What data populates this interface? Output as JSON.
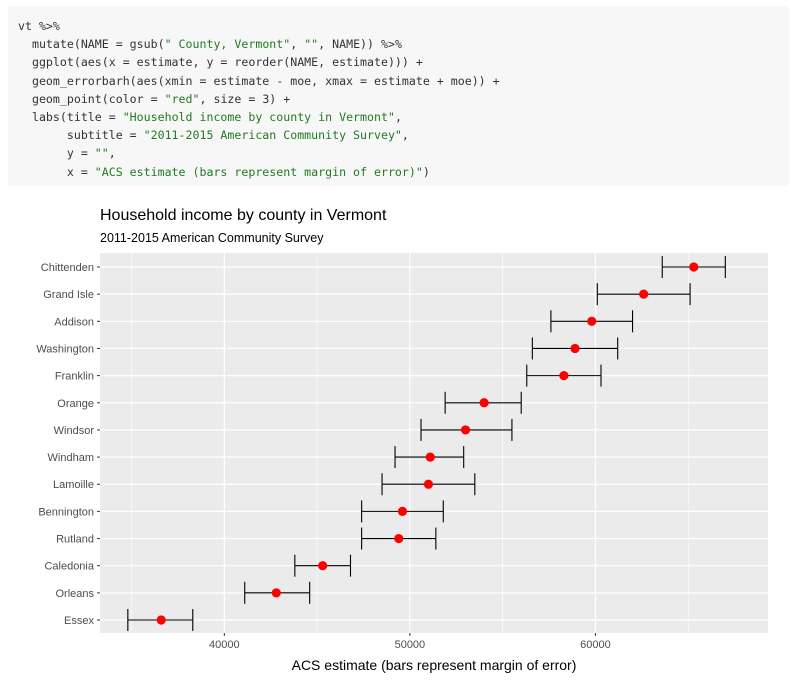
{
  "code": {
    "lines": [
      [
        {
          "t": "vt %>%",
          "s": false
        }
      ],
      [
        {
          "t": "  mutate(NAME = gsub(",
          "s": false
        },
        {
          "t": "\" County, Vermont\"",
          "s": true
        },
        {
          "t": ", ",
          "s": false
        },
        {
          "t": "\"\"",
          "s": true
        },
        {
          "t": ", NAME)) %>%",
          "s": false
        }
      ],
      [
        {
          "t": "  ggplot(aes(x = estimate, y = reorder(NAME, estimate))) +",
          "s": false
        }
      ],
      [
        {
          "t": "  geom_errorbarh(aes(xmin = estimate - moe, xmax = estimate + moe)) +",
          "s": false
        }
      ],
      [
        {
          "t": "  geom_point(color = ",
          "s": false
        },
        {
          "t": "\"red\"",
          "s": true
        },
        {
          "t": ", size = 3) +",
          "s": false
        }
      ],
      [
        {
          "t": "  labs(title = ",
          "s": false
        },
        {
          "t": "\"Household income by county in Vermont\"",
          "s": true
        },
        {
          "t": ",",
          "s": false
        }
      ],
      [
        {
          "t": "       subtitle = ",
          "s": false
        },
        {
          "t": "\"2011-2015 American Community Survey\"",
          "s": true
        },
        {
          "t": ",",
          "s": false
        }
      ],
      [
        {
          "t": "       y = ",
          "s": false
        },
        {
          "t": "\"\"",
          "s": true
        },
        {
          "t": ",",
          "s": false
        }
      ],
      [
        {
          "t": "       x = ",
          "s": false
        },
        {
          "t": "\"ACS estimate (bars represent margin of error)\"",
          "s": true
        },
        {
          "t": ")",
          "s": false
        }
      ]
    ]
  },
  "chart_data": {
    "type": "scatter",
    "title": "Household income by county in Vermont",
    "subtitle": "2011-2015 American Community Survey",
    "xlabel": "ACS estimate (bars represent margin of error)",
    "ylabel": "",
    "xlim": [
      33300,
      69300
    ],
    "xticks": [
      40000,
      50000,
      60000
    ],
    "xtick_labels": [
      "40000",
      "50000",
      "60000"
    ],
    "grid": true,
    "legend": "none",
    "colors": {
      "point": "#ff0000",
      "errorbar": "#000000",
      "panel": "#ebebeb",
      "grid": "#ffffff"
    },
    "categories": [
      "Chittenden",
      "Grand Isle",
      "Addison",
      "Washington",
      "Franklin",
      "Orange",
      "Windsor",
      "Windham",
      "Lamoille",
      "Bennington",
      "Rutland",
      "Caledonia",
      "Orleans",
      "Essex"
    ],
    "series": [
      {
        "values": [
          65300,
          62600,
          59800,
          58900,
          58300,
          54000,
          53000,
          51100,
          51000,
          49600,
          49400,
          45300,
          42800,
          36600
        ],
        "xmin": [
          63600,
          60100,
          57600,
          56600,
          56300,
          51900,
          50600,
          49200,
          48500,
          47400,
          47400,
          43800,
          41100,
          34800
        ],
        "xmax": [
          67000,
          65100,
          62000,
          61200,
          60300,
          56000,
          55500,
          52900,
          53500,
          51800,
          51400,
          46800,
          44600,
          38300
        ]
      }
    ]
  }
}
